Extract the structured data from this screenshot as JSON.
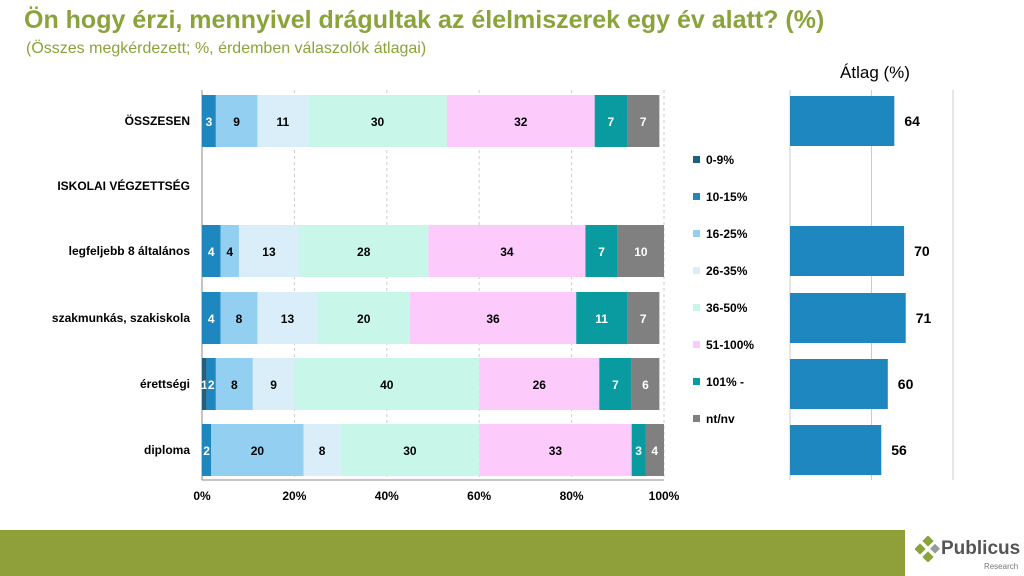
{
  "title": "Ön hogy érzi, mennyivel drágultak az élelmiszerek egy év alatt? (%)",
  "subtitle": "(Összes megkérdezett; %, érdemben válaszolók átlagai)",
  "chart_data": [
    {
      "type": "bar",
      "orientation": "horizontal-stacked-100",
      "categories": [
        "ÖSSZESEN",
        "ISKOLAI VÉGZETTSÉG",
        "legfeljebb 8 általános",
        "szakmunkás, szakiskola",
        "érettségi",
        "diploma"
      ],
      "series": [
        {
          "name": "0-9%",
          "color": "#1f5f80",
          "values": [
            0,
            null,
            0,
            0,
            1,
            0
          ]
        },
        {
          "name": "10-15%",
          "color": "#1f87c0",
          "values": [
            3,
            null,
            4,
            4,
            2,
            2
          ]
        },
        {
          "name": "16-25%",
          "color": "#92cff0",
          "values": [
            9,
            null,
            4,
            8,
            8,
            20
          ]
        },
        {
          "name": "26-35%",
          "color": "#d9eef9",
          "values": [
            11,
            null,
            13,
            13,
            9,
            8
          ]
        },
        {
          "name": "36-50%",
          "color": "#c8f7ea",
          "values": [
            30,
            null,
            28,
            20,
            40,
            30
          ]
        },
        {
          "name": "51-100%",
          "color": "#fccbfc",
          "values": [
            32,
            null,
            34,
            36,
            26,
            33
          ]
        },
        {
          "name": "101% -",
          "color": "#0a9ba0",
          "values": [
            7,
            null,
            7,
            11,
            7,
            3
          ]
        },
        {
          "name": "nt/nv",
          "color": "#808080",
          "values": [
            7,
            null,
            10,
            7,
            6,
            4
          ]
        }
      ],
      "xticks": [
        "0%",
        "20%",
        "40%",
        "60%",
        "80%",
        "100%"
      ],
      "xlim": [
        0,
        100
      ],
      "grid": true,
      "legend": "right"
    },
    {
      "type": "bar",
      "orientation": "horizontal",
      "title": "Átlag (%)",
      "categories": [
        "ÖSSZESEN",
        "ISKOLAI VÉGZETTSÉG",
        "legfeljebb 8 általános",
        "szakmunkás, szakiskola",
        "érettségi",
        "diploma"
      ],
      "values": [
        64,
        null,
        70,
        71,
        60,
        56
      ],
      "color": "#1f87c0"
    }
  ],
  "logo": {
    "name": "Publicus",
    "sub": "Research"
  }
}
